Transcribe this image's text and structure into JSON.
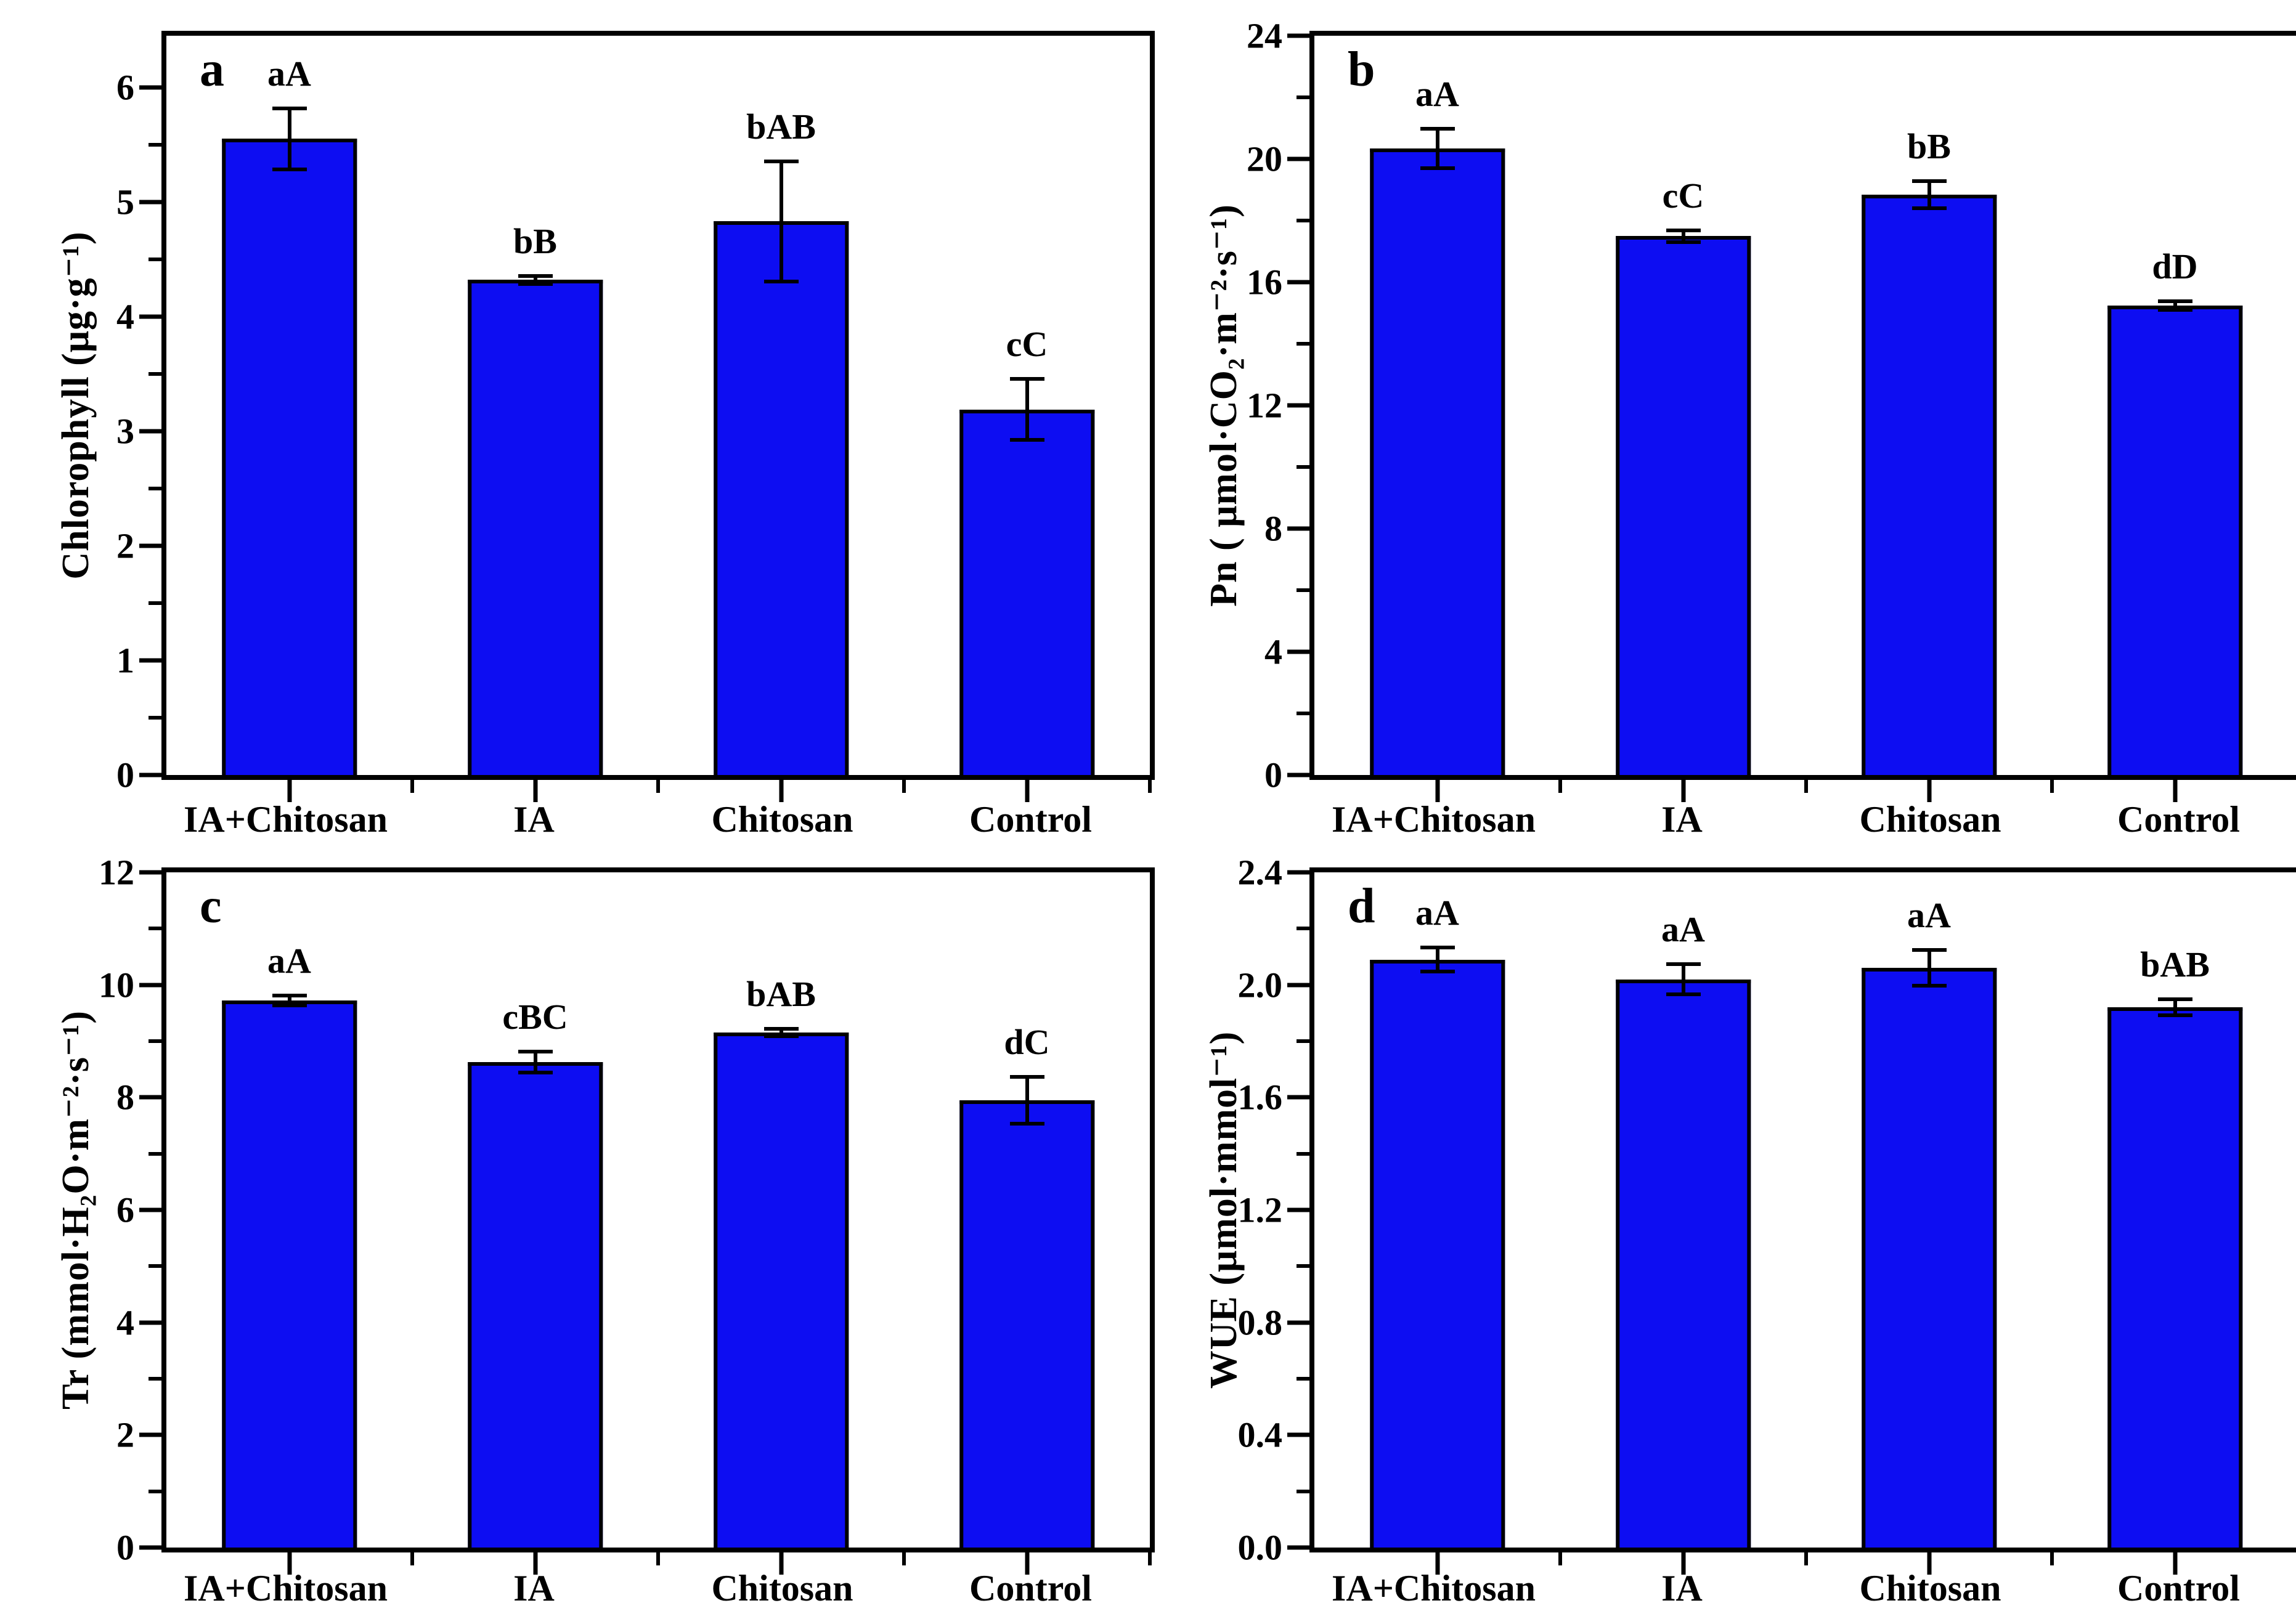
{
  "figure": {
    "background": "#ffffff",
    "bar_fill": "#0d0df2",
    "bar_edge": "#000000",
    "frame_color": "#000000",
    "text_color": "#000000"
  },
  "chart_data": [
    {
      "type": "bar",
      "panel_letter": "a",
      "title": "",
      "xlabel": "",
      "ylabel": "Chlorophyll (μg·g⁻¹)",
      "categories": [
        "IA+Chitosan",
        "IA",
        "Chitosan",
        "Control"
      ],
      "values": [
        5.55,
        4.32,
        4.83,
        3.19
      ],
      "errors": [
        0.28,
        0.05,
        0.54,
        0.28
      ],
      "sig_labels": [
        "aA",
        "bB",
        "bAB",
        "cC"
      ],
      "ylim": [
        0,
        6.45
      ],
      "yticks": [
        0,
        1,
        2,
        3,
        4,
        5,
        6
      ],
      "ytick_labels": [
        "0",
        "1",
        "2",
        "3",
        "4",
        "5",
        "6"
      ],
      "yminor": [
        0.5,
        1.5,
        2.5,
        3.5,
        4.5,
        5.5
      ],
      "grid": false,
      "legend": "none"
    },
    {
      "type": "bar",
      "panel_letter": "b",
      "title": "",
      "xlabel": "",
      "ylabel": "Pn ( μmol·CO₂·m⁻²·s⁻¹)",
      "categories": [
        "IA+Chitosan",
        "IA",
        "Chitosan",
        "Control"
      ],
      "values": [
        20.35,
        17.5,
        18.85,
        15.25
      ],
      "errors": [
        0.7,
        0.25,
        0.5,
        0.2
      ],
      "sig_labels": [
        "aA",
        "cC",
        "bB",
        "dD"
      ],
      "ylim": [
        0,
        24
      ],
      "yticks": [
        0,
        4,
        8,
        12,
        16,
        20,
        24
      ],
      "ytick_labels": [
        "0",
        "4",
        "8",
        "12",
        "16",
        "20",
        "24"
      ],
      "yminor": [
        2,
        6,
        10,
        14,
        18,
        22
      ],
      "grid": false,
      "legend": "none"
    },
    {
      "type": "bar",
      "panel_letter": "c",
      "title": "",
      "xlabel": "",
      "ylabel": "Tr (mmol·H₂O·m⁻²·s⁻¹)",
      "categories": [
        "IA+Chitosan",
        "IA",
        "Chitosan",
        "Control"
      ],
      "values": [
        9.72,
        8.63,
        9.15,
        7.95
      ],
      "errors": [
        0.12,
        0.22,
        0.1,
        0.45
      ],
      "sig_labels": [
        "aA",
        "cBC",
        "bAB",
        "dC"
      ],
      "ylim": [
        0,
        12
      ],
      "yticks": [
        0,
        2,
        4,
        6,
        8,
        10,
        12
      ],
      "ytick_labels": [
        "0",
        "2",
        "4",
        "6",
        "8",
        "10",
        "12"
      ],
      "yminor": [
        1,
        3,
        5,
        7,
        9,
        11
      ],
      "grid": false,
      "legend": "none"
    },
    {
      "type": "bar",
      "panel_letter": "d",
      "title": "",
      "xlabel": "",
      "ylabel": "WUE (μmol·mmol⁻¹)",
      "categories": [
        "IA+Chitosan",
        "IA",
        "Chitosan",
        "Control"
      ],
      "values": [
        2.09,
        2.02,
        2.06,
        1.92
      ],
      "errors": [
        0.05,
        0.06,
        0.07,
        0.035
      ],
      "sig_labels": [
        "aA",
        "aA",
        "aA",
        "bAB"
      ],
      "ylim": [
        0,
        2.4
      ],
      "yticks": [
        0,
        0.4,
        0.8,
        1.2,
        1.6,
        2.0,
        2.4
      ],
      "ytick_labels": [
        "0.0",
        "0.4",
        "0.8",
        "1.2",
        "1.6",
        "2.0",
        "2.4"
      ],
      "yminor": [
        0.2,
        0.6,
        1.0,
        1.4,
        1.8,
        2.2
      ],
      "grid": false,
      "legend": "none"
    }
  ]
}
